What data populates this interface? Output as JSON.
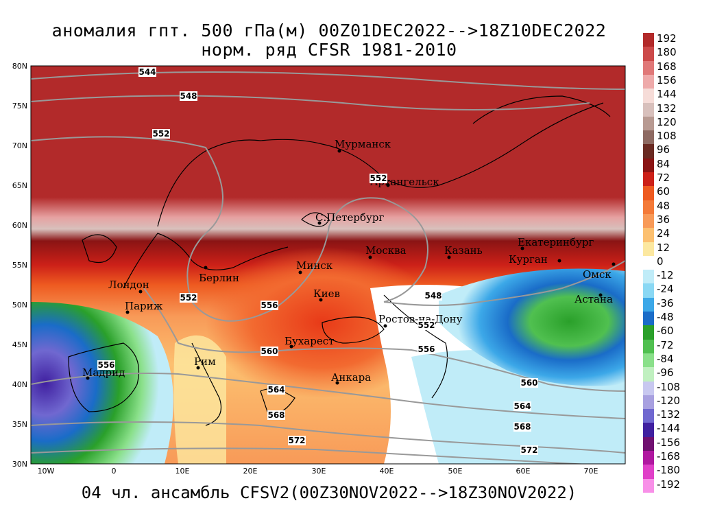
{
  "title": {
    "line1": "аномалия гпт. 500 гПа(м) 00Z01DEC2022-->18Z10DEC2022",
    "line2": "норм. ряд CFSR 1981-2010"
  },
  "footer": "04 чл. ансамбль CFSV2(00Z30NOV2022-->18Z30NOV2022)",
  "map": {
    "lat_labels": [
      "80N",
      "75N",
      "70N",
      "65N",
      "60N",
      "55N",
      "50N",
      "45N",
      "40N",
      "35N",
      "30N"
    ],
    "lon_labels": [
      "10W",
      "0",
      "10E",
      "20E",
      "30E",
      "40E",
      "50E",
      "60E",
      "70E"
    ],
    "cities": [
      {
        "name": "Мурманск"
      },
      {
        "name": "Архангельск"
      },
      {
        "name": "С.Петербург"
      },
      {
        "name": "Москва"
      },
      {
        "name": "Казань"
      },
      {
        "name": "Екатеринбург"
      },
      {
        "name": "Курган"
      },
      {
        "name": "Омск"
      },
      {
        "name": "Астана"
      },
      {
        "name": "Минск"
      },
      {
        "name": "Берлин"
      },
      {
        "name": "Лондон"
      },
      {
        "name": "Париж"
      },
      {
        "name": "Киев"
      },
      {
        "name": "Ростов-на-Дону"
      },
      {
        "name": "Бухарест"
      },
      {
        "name": "Рим"
      },
      {
        "name": "Мадрид"
      },
      {
        "name": "Анкара"
      }
    ],
    "contour_labels": [
      "544",
      "548",
      "552",
      "552",
      "552",
      "556",
      "560",
      "564",
      "568",
      "572",
      "548",
      "552",
      "556",
      "560",
      "564",
      "568",
      "572",
      "556"
    ]
  },
  "legend": {
    "values": [
      "192",
      "180",
      "168",
      "156",
      "144",
      "132",
      "120",
      "108",
      "96",
      "84",
      "72",
      "60",
      "48",
      "36",
      "24",
      "12",
      "0",
      "-12",
      "-24",
      "-36",
      "-48",
      "-60",
      "-72",
      "-84",
      "-96",
      "-108",
      "-120",
      "-132",
      "-144",
      "-156",
      "-168",
      "-180",
      "-192"
    ],
    "colors": [
      "#b22a2a",
      "#cc4a4a",
      "#e07878",
      "#eeaaaa",
      "#f6dcd8",
      "#d8c0bc",
      "#b89a92",
      "#8e6a62",
      "#6a2a22",
      "#8a1414",
      "#cc2018",
      "#ee5a20",
      "#f47a38",
      "#f89a58",
      "#fcc070",
      "#fce8a0",
      "#ffffff",
      "#c0ecf8",
      "#8ad8f4",
      "#3ca8e8",
      "#1a6cc8",
      "#2aa02a",
      "#50c050",
      "#8ae08a",
      "#c0f0c0",
      "#c8c8f0",
      "#a8a0e0",
      "#7068d0",
      "#4020a0",
      "#701070",
      "#b018a0",
      "#e040c8",
      "#f890e8"
    ]
  }
}
